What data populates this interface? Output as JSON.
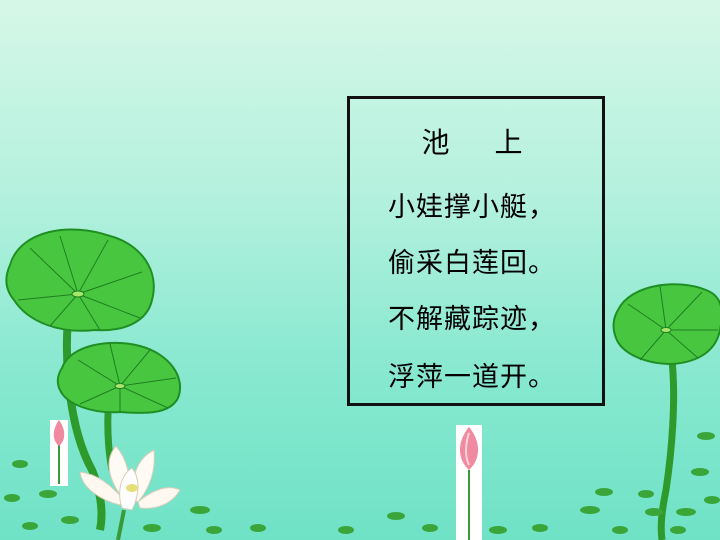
{
  "poem": {
    "title": "池 上",
    "lines": [
      "小娃撑小艇，",
      "偷采白莲回。",
      "不解藏踪迹，",
      "浮萍一道开。"
    ]
  },
  "colors": {
    "background_top": "#d6f7e8",
    "background_bottom": "#6fe2c6",
    "leaf": "#3fbf3a",
    "leaf_dark": "#1f8f24",
    "lotus_bud": "#f08aa0",
    "border": "#111111"
  },
  "decorations": [
    "lotus-leaf-icon",
    "lotus-flower-icon",
    "lotus-bud-icon",
    "duckweed-icon"
  ]
}
